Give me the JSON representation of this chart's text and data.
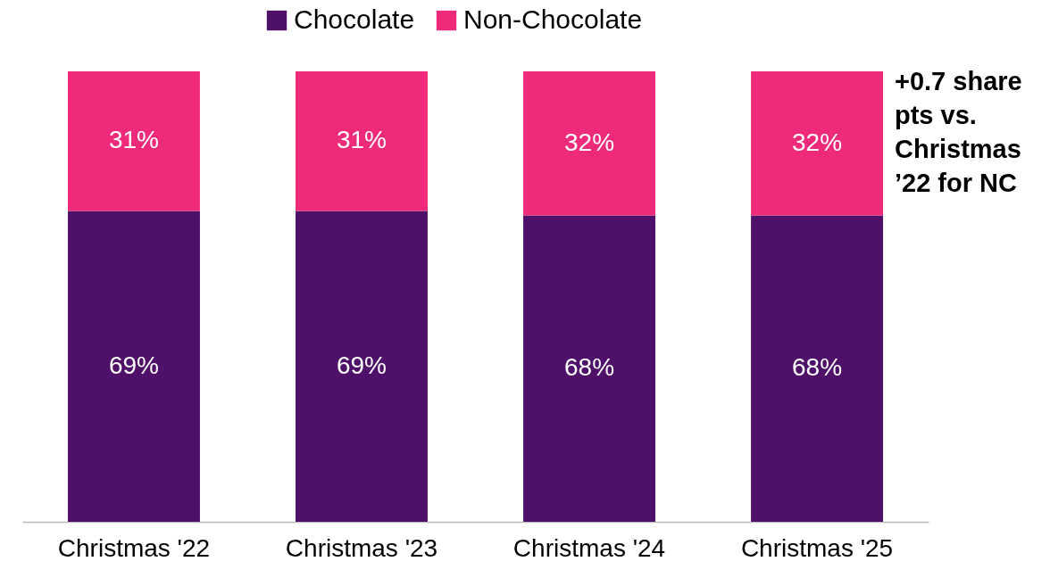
{
  "chart_data": {
    "type": "bar",
    "stacked": true,
    "legend": "top",
    "categories": [
      "Christmas '22",
      "Christmas '23",
      "Christmas '24",
      "Christmas '25"
    ],
    "series": [
      {
        "name": "Chocolate",
        "color": "#4e1068",
        "values": [
          69,
          69,
          68,
          68
        ],
        "value_labels": [
          "69%",
          "69%",
          "68%",
          "68%"
        ]
      },
      {
        "name": "Non-Chocolate",
        "color": "#ef2a7b",
        "values": [
          31,
          31,
          32,
          32
        ],
        "value_labels": [
          "31%",
          "31%",
          "32%",
          "32%"
        ]
      }
    ],
    "annotations": [
      "+0.7 share pts vs. Christmas ’22 for NC"
    ]
  }
}
